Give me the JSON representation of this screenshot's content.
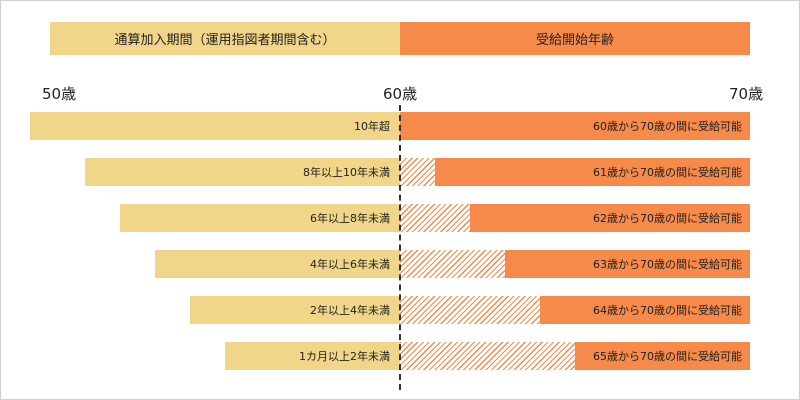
{
  "headers": {
    "left": "通算加入期間（運用指図者期間含む）",
    "right": "受給開始年齢"
  },
  "axis": {
    "left": "50歳",
    "mid": "60歳",
    "right": "70歳"
  },
  "rows": [
    {
      "period": "10年超",
      "period_years": 10,
      "range": "60歳から70歳の間に受給可能",
      "start_age": 60
    },
    {
      "period": "8年以上10年未満",
      "period_years": 8,
      "range": "61歳から70歳の間に受給可能",
      "start_age": 61
    },
    {
      "period": "6年以上8年未満",
      "period_years": 6,
      "range": "62歳から70歳の間に受給可能",
      "start_age": 62
    },
    {
      "period": "4年以上6年未満",
      "period_years": 4,
      "range": "63歳から70歳の間に受給可能",
      "start_age": 63
    },
    {
      "period": "2年以上4年未満",
      "period_years": 2,
      "range": "64歳から70歳の間に受給可能",
      "start_age": 64
    },
    {
      "period": "1カ月以上2年未満",
      "period_years": 1,
      "range": "65歳から70歳の間に受給可能",
      "start_age": 65
    }
  ],
  "colors": {
    "left": "#f1d589",
    "right": "#f58a4a",
    "divider": "#333333"
  }
}
